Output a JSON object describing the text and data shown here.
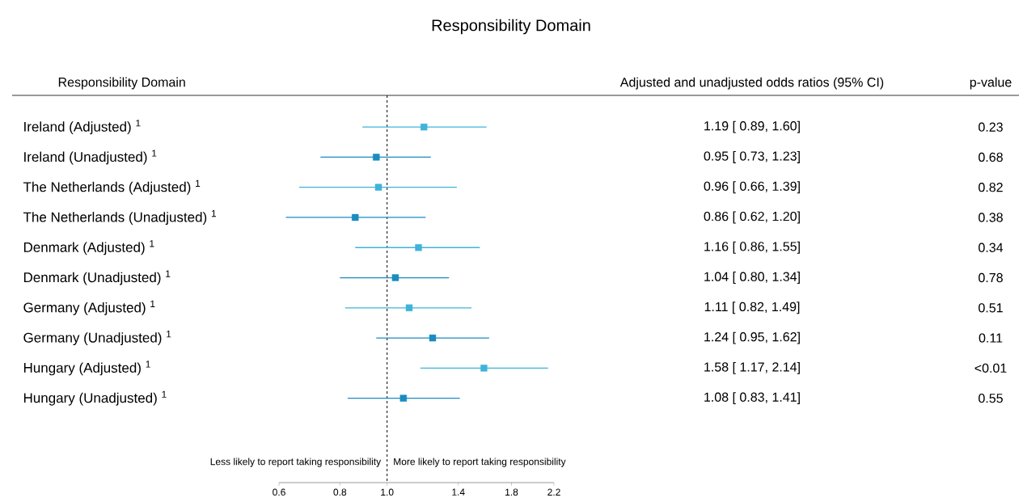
{
  "chart_data": {
    "type": "scatter",
    "orientation": "horizontal",
    "title": "Responsibility Domain",
    "categories": [
      "Ireland (Adjusted) $^{1}$",
      "Ireland (Unadjusted) $^{1}$",
      "The Netherlands (Adjusted) $^{1}$",
      "The Netherlands (Unadjusted) $^{1}$",
      "Denmark (Adjusted) $^{1}$",
      "Denmark (Unadjusted) $^{1}$",
      "Germany (Adjusted) $^{1}$",
      "Germany (Unadjusted) $^{1}$",
      "Hungary (Adjusted) $^{1}$",
      "Hungary (Unadjusted) $^{1}$"
    ],
    "values": [
      1.19,
      0.95,
      0.96,
      0.86,
      1.16,
      1.04,
      1.11,
      1.24,
      1.58,
      1.08
    ],
    "errors": [
      [
        0.89,
        1.6
      ],
      [
        0.73,
        1.23
      ],
      [
        0.66,
        1.39
      ],
      [
        0.62,
        1.2
      ],
      [
        0.86,
        1.55
      ],
      [
        0.8,
        1.34
      ],
      [
        0.82,
        1.49
      ],
      [
        0.95,
        1.62
      ],
      [
        1.17,
        2.14
      ],
      [
        0.83,
        1.41
      ]
    ],
    "value_labels": [
      "1.19 [ 0.89,  1.60]",
      "0.95 [ 0.73,  1.23]",
      "0.96 [ 0.66,  1.39]",
      "0.86 [ 0.62,  1.20]",
      "1.16 [ 0.86,  1.55]",
      "1.04 [ 0.80,  1.34]",
      "1.11 [ 0.82,  1.49]",
      "1.24 [ 0.95,  1.62]",
      "1.58 [ 1.17,  2.14]",
      "1.08 [ 0.83,  1.41]"
    ],
    "colors": [
      "#3fb3d9",
      "#1a8cbf",
      "#3fb3d9",
      "#1a8cbf",
      "#3fb3d9",
      "#1a8cbf",
      "#3fb3d9",
      "#1a8cbf",
      "#3fb3d9",
      "#1a8cbf"
    ],
    "marker": "square",
    "log": "x",
    "xlim": [
      0.6,
      2.2
    ],
    "xticks": [
      0.6,
      0.8,
      {
        "value": 1.0,
        "label": "1.0"
      },
      1.4,
      1.8,
      2.2
    ],
    "ref_lines": [
      {
        "axis": "x",
        "value": 1,
        "color": "#000000",
        "line_style": "dashed"
      }
    ],
    "annotations": [
      "Responsibility Domain",
      "Adjusted and unadjusted odds ratios (95% CI)",
      "p-value",
      "Less likely to report taking responsibility",
      "More likely to report taking responsibility",
      "0.23",
      "0.68",
      "0.82",
      "0.38",
      "0.34",
      "0.78",
      "0.51",
      "0.11",
      "<0.01",
      "0.55"
    ]
  }
}
